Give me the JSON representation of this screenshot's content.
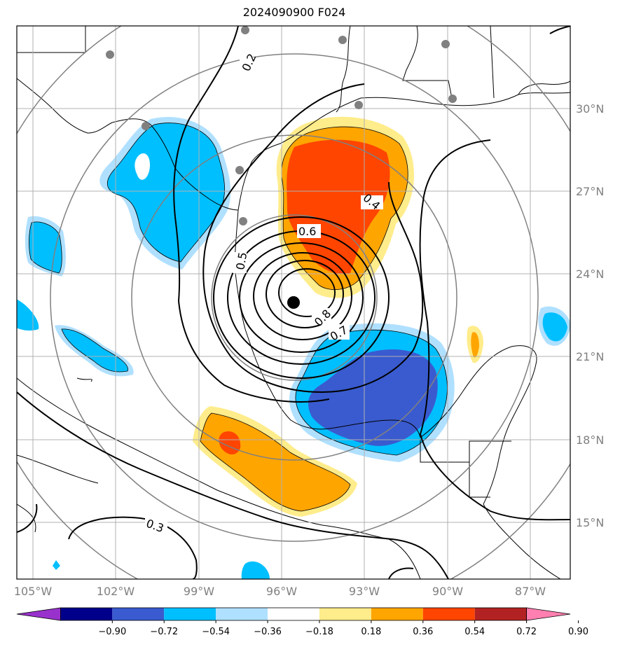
{
  "title": "2024090900 F024",
  "map": {
    "lon_ticks": [
      "105°W",
      "102°W",
      "99°W",
      "96°W",
      "93°W",
      "90°W",
      "87°W"
    ],
    "lat_ticks": [
      "15°N",
      "18°N",
      "21°N",
      "24°N",
      "27°N",
      "30°N"
    ],
    "contour_labels": [
      "0.2",
      "0.3",
      "0.4",
      "0.5",
      "0.6",
      "0.7",
      "0.8"
    ],
    "colors": {
      "fill_neg_090": "#9932cc",
      "fill_neg_072": "#00008b",
      "fill_neg_054": "#3a5bcf",
      "fill_neg_036": "#00bfff",
      "fill_neg_018": "#b0e0ff",
      "fill_zero": "#ffffff",
      "fill_pos_018": "#ffec8b",
      "fill_pos_036": "#ffa500",
      "fill_pos_054": "#ff4500",
      "fill_pos_072": "#b22222",
      "fill_pos_090": "#ff7fb0",
      "grid": "#b0b0b0",
      "range_rings": "#808080",
      "station_dots": "#808080",
      "storm_center": "#000000"
    }
  },
  "colorbar": {
    "labels": [
      "−0.90",
      "−0.72",
      "−0.54",
      "−0.36",
      "−0.18",
      "0.18",
      "0.36",
      "0.54",
      "0.72",
      "0.90"
    ],
    "segments": [
      "#9932cc",
      "#00008b",
      "#3a5bcf",
      "#00bfff",
      "#b0e0ff",
      "#ffffff",
      "#ffec8b",
      "#ffa500",
      "#ff4500",
      "#b22222",
      "#ff7fb0"
    ]
  }
}
